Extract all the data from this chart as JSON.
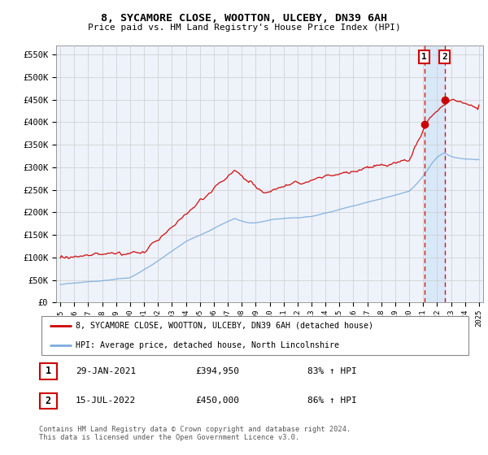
{
  "title": "8, SYCAMORE CLOSE, WOOTTON, ULCEBY, DN39 6AH",
  "subtitle": "Price paid vs. HM Land Registry's House Price Index (HPI)",
  "ylabel_ticks": [
    "£0",
    "£50K",
    "£100K",
    "£150K",
    "£200K",
    "£250K",
    "£300K",
    "£350K",
    "£400K",
    "£450K",
    "£500K",
    "£550K"
  ],
  "ytick_values": [
    0,
    50000,
    100000,
    150000,
    200000,
    250000,
    300000,
    350000,
    400000,
    450000,
    500000,
    550000
  ],
  "year_start": 1995,
  "year_end": 2025,
  "hpi_color": "#7aacdc",
  "price_color": "#cc0000",
  "bg_color": "#eef2fa",
  "grid_color": "#cccccc",
  "point1_date": "29-JAN-2021",
  "point1_price": 394950,
  "point1_hpi_pct": "83%",
  "point2_date": "15-JUL-2022",
  "point2_price": 450000,
  "point2_hpi_pct": "86%",
  "point1_year": 2021.08,
  "point2_year": 2022.54,
  "legend_line1": "8, SYCAMORE CLOSE, WOOTTON, ULCEBY, DN39 6AH (detached house)",
  "legend_line2": "HPI: Average price, detached house, North Lincolnshire",
  "footer": "Contains HM Land Registry data © Crown copyright and database right 2024.\nThis data is licensed under the Open Government Licence v3.0.",
  "shade_color": "#d0e4f8"
}
